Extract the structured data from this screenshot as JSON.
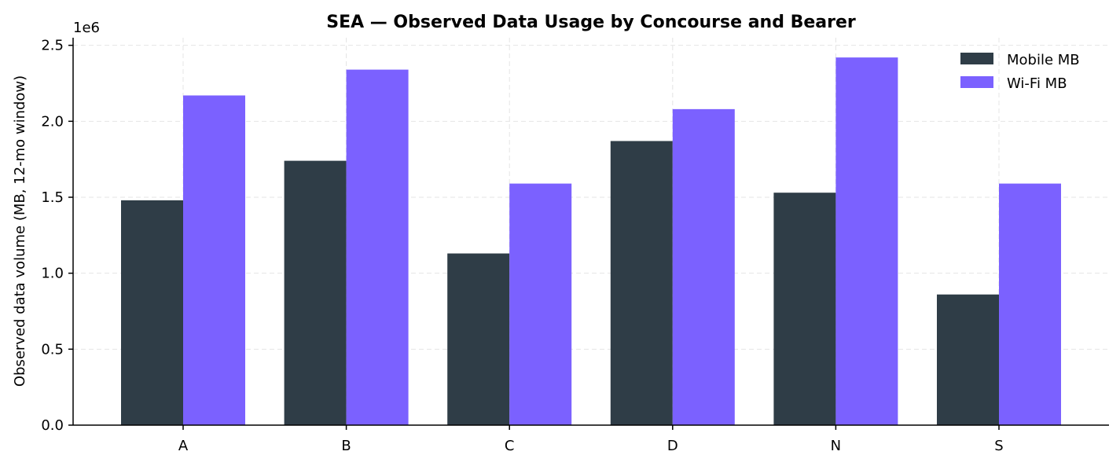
{
  "chart_data": {
    "type": "bar",
    "title": "SEA — Observed Data Usage by Concourse and Bearer",
    "xlabel": "",
    "ylabel": "Observed data volume (MB, 12-mo window)",
    "y_scale_label": "1e6",
    "y_scale": 1000000,
    "categories": [
      "A",
      "B",
      "C",
      "D",
      "N",
      "S"
    ],
    "series": [
      {
        "name": "Mobile MB",
        "color": "#2f3d47",
        "values": [
          1480000,
          1740000,
          1130000,
          1870000,
          1530000,
          860000
        ]
      },
      {
        "name": "Wi-Fi MB",
        "color": "#7b61ff",
        "values": [
          2170000,
          2340000,
          1590000,
          2080000,
          2420000,
          1590000
        ]
      }
    ],
    "ylim": [
      0,
      2550000
    ],
    "yticks": [
      0,
      500000,
      1000000,
      1500000,
      2000000,
      2500000
    ],
    "ytick_labels": [
      "0.0",
      "0.5",
      "1.0",
      "1.5",
      "2.0",
      "2.5"
    ],
    "grid": true,
    "legend_position": "top-right"
  }
}
